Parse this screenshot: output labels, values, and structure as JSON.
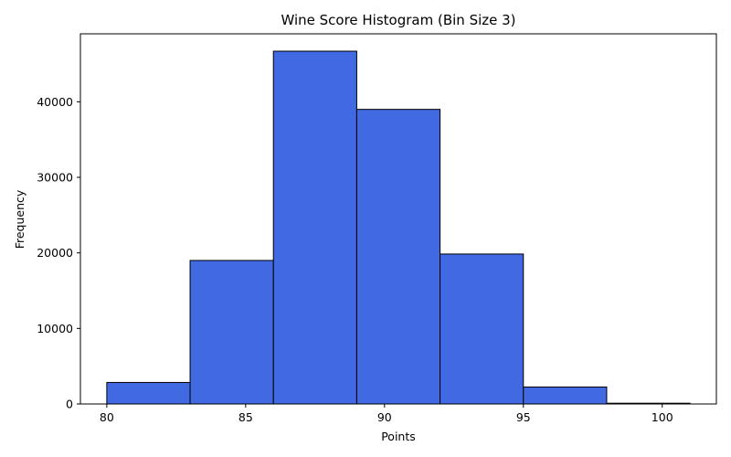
{
  "chart_data": {
    "type": "bar",
    "title": "Wine Score Histogram (Bin Size 3)",
    "xlabel": "Points",
    "ylabel": "Frequency",
    "bin_edges": [
      80,
      83,
      86,
      89,
      92,
      95,
      98,
      101
    ],
    "values": [
      2850,
      19000,
      46700,
      39000,
      19850,
      2250,
      100
    ],
    "xlim": [
      79.05,
      101.95
    ],
    "ylim": [
      0,
      49000
    ],
    "xticks": [
      80,
      85,
      90,
      95,
      100
    ],
    "yticks": [
      0,
      10000,
      20000,
      30000,
      40000
    ],
    "grid": false,
    "bar_color": "#4169e1",
    "edge_color": "#000000"
  }
}
